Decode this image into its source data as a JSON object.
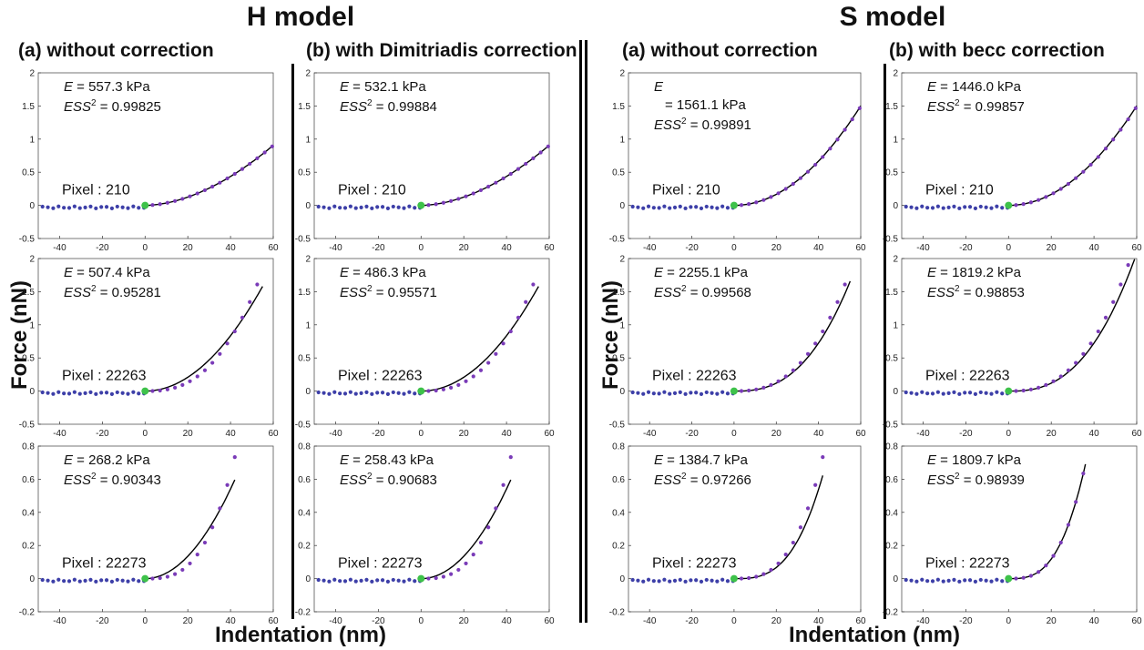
{
  "titles": {
    "h_model": "H model",
    "s_model": "S model",
    "h_a": "(a) without correction",
    "h_b": "(b) with Dimitriadis correction",
    "s_a": "(a) without correction",
    "s_b": "(b) with becc correction"
  },
  "axes": {
    "ylabel": "Force (nN)",
    "xlabel": "Indentation (nm)"
  },
  "colors": {
    "data_blue": "#3d3fa8",
    "data_purple": "#7a3bb8",
    "contact_green": "#3ec24a",
    "fit_line": "#000000"
  },
  "chart_data": [
    {
      "type": "scatter",
      "model": "H",
      "column": "a",
      "row": 1,
      "pixel_label": "Pixel : 210",
      "e_text": "= 557.3 kPa",
      "ess_text": "= 0.99825",
      "xlim": [
        -50,
        60
      ],
      "ylim": [
        -0.5,
        2
      ],
      "xticks": [
        -40,
        -20,
        0,
        20,
        40,
        60
      ],
      "yticks": [
        -0.5,
        0,
        0.5,
        1,
        1.5,
        2
      ],
      "fit": {
        "a": 0.000571,
        "p": 1.8
      },
      "data_exp": 1.8,
      "data_a": 0.000569,
      "xmax": 60
    },
    {
      "type": "scatter",
      "model": "H",
      "column": "b",
      "row": 1,
      "pixel_label": "Pixel : 210",
      "e_text": "= 532.1 kPa",
      "ess_text": "= 0.99884",
      "xlim": [
        -50,
        60
      ],
      "ylim": [
        -0.5,
        2
      ],
      "xticks": [
        -40,
        -20,
        0,
        20,
        40,
        60
      ],
      "yticks": [
        -0.5,
        0,
        0.5,
        1,
        1.5,
        2
      ],
      "fit": {
        "a": 0.000571,
        "p": 1.8
      },
      "data_exp": 1.8,
      "data_a": 0.000569,
      "xmax": 60
    },
    {
      "type": "scatter",
      "model": "S",
      "column": "a",
      "row": 1,
      "pixel_label": "Pixel : 210",
      "e_text": "= 1561.1 kPa",
      "e_wrap": true,
      "ess_text": "= 0.99891",
      "xlim": [
        -50,
        60
      ],
      "ylim": [
        -0.5,
        2
      ],
      "xticks": [
        -40,
        -20,
        0,
        20,
        40,
        60
      ],
      "yticks": [
        -0.5,
        0,
        0.5,
        1,
        1.5,
        2
      ],
      "fit": {
        "a": 0.000417,
        "p": 2.0
      },
      "data_exp": 2.0,
      "data_a": 0.000414,
      "xmax": 60
    },
    {
      "type": "scatter",
      "model": "S",
      "column": "b",
      "row": 1,
      "pixel_label": "Pixel : 210",
      "e_text": "= 1446.0 kPa",
      "ess_text": "= 0.99857",
      "xlim": [
        -50,
        60
      ],
      "ylim": [
        -0.5,
        2
      ],
      "xticks": [
        -40,
        -20,
        0,
        20,
        40,
        60
      ],
      "yticks": [
        -0.5,
        0,
        0.5,
        1,
        1.5,
        2
      ],
      "fit": {
        "a": 0.000417,
        "p": 2.0
      },
      "data_exp": 2.0,
      "data_a": 0.000414,
      "xmax": 60
    },
    {
      "type": "scatter",
      "model": "H",
      "column": "a",
      "row": 2,
      "pixel_label": "Pixel : 22263",
      "e_text": "= 507.4 kPa",
      "ess_text": "= 0.95281",
      "xlim": [
        -50,
        60
      ],
      "ylim": [
        -0.5,
        2
      ],
      "xticks": [
        -40,
        -20,
        0,
        20,
        40,
        60
      ],
      "yticks": [
        -0.5,
        0,
        0.5,
        1,
        1.5,
        2
      ],
      "fit": {
        "a": 0.000522,
        "p": 2.0
      },
      "data_exp": 2.6,
      "data_a": 5.42e-05,
      "xmax": 55
    },
    {
      "type": "scatter",
      "model": "H",
      "column": "b",
      "row": 2,
      "pixel_label": "Pixel : 22263",
      "e_text": "= 486.3 kPa",
      "ess_text": "= 0.95571",
      "xlim": [
        -50,
        60
      ],
      "ylim": [
        -0.5,
        2
      ],
      "xticks": [
        -40,
        -20,
        0,
        20,
        40,
        60
      ],
      "yticks": [
        -0.5,
        0,
        0.5,
        1,
        1.5,
        2
      ],
      "fit": {
        "a": 0.000522,
        "p": 2.0
      },
      "data_exp": 2.6,
      "data_a": 5.42e-05,
      "xmax": 55
    },
    {
      "type": "scatter",
      "model": "S",
      "column": "a",
      "row": 2,
      "pixel_label": "Pixel : 22263",
      "e_text": "= 2255.1 kPa",
      "ess_text": "= 0.99568",
      "xlim": [
        -50,
        60
      ],
      "ylim": [
        -0.5,
        2
      ],
      "xticks": [
        -40,
        -20,
        0,
        20,
        40,
        60
      ],
      "yticks": [
        -0.5,
        0,
        0.5,
        1,
        1.5,
        2
      ],
      "fit": {
        "a": 4.95e-05,
        "p": 2.6
      },
      "data_exp": 2.6,
      "data_a": 5.42e-05,
      "xmax": 55
    },
    {
      "type": "scatter",
      "model": "S",
      "column": "b",
      "row": 2,
      "pixel_label": "Pixel : 22263",
      "e_text": "= 1819.2 kPa",
      "ess_text": "= 0.98853",
      "xlim": [
        -50,
        60
      ],
      "ylim": [
        -0.5,
        2
      ],
      "xticks": [
        -40,
        -20,
        0,
        20,
        40,
        60
      ],
      "yticks": [
        -0.5,
        0,
        0.5,
        1,
        1.5,
        2
      ],
      "fit": {
        "a": 4.95e-05,
        "p": 2.6
      },
      "data_exp": 2.6,
      "data_a": 5.42e-05,
      "xmax": 60
    },
    {
      "type": "scatter",
      "model": "H",
      "column": "a",
      "row": 3,
      "pixel_label": "Pixel : 22273",
      "e_text": "= 268.2 kPa",
      "ess_text": "= 0.90343",
      "xlim": [
        -50,
        60
      ],
      "ylim": [
        -0.2,
        0.8
      ],
      "xticks": [
        -40,
        -20,
        0,
        20,
        40,
        60
      ],
      "yticks": [
        -0.2,
        0,
        0.2,
        0.4,
        0.6,
        0.8
      ],
      "fit": {
        "a": 0.000338,
        "p": 2.0
      },
      "data_exp": 3.0,
      "data_a": 9.9e-06,
      "xmax": 42
    },
    {
      "type": "scatter",
      "model": "H",
      "column": "b",
      "row": 3,
      "pixel_label": "Pixel : 22273",
      "e_text": "= 258.43 kPa",
      "ess_text": "= 0.90683",
      "xlim": [
        -50,
        60
      ],
      "ylim": [
        -0.2,
        0.8
      ],
      "xticks": [
        -40,
        -20,
        0,
        20,
        40,
        60
      ],
      "yticks": [
        -0.2,
        0,
        0.2,
        0.4,
        0.6,
        0.8
      ],
      "fit": {
        "a": 0.000338,
        "p": 2.0
      },
      "data_exp": 3.0,
      "data_a": 9.9e-06,
      "xmax": 42
    },
    {
      "type": "scatter",
      "model": "S",
      "column": "a",
      "row": 3,
      "pixel_label": "Pixel : 22273",
      "e_text": "= 1384.7 kPa",
      "ess_text": "= 0.97266",
      "xlim": [
        -50,
        60
      ],
      "ylim": [
        -0.2,
        0.8
      ],
      "xticks": [
        -40,
        -20,
        0,
        20,
        40,
        60
      ],
      "yticks": [
        -0.2,
        0,
        0.2,
        0.4,
        0.6,
        0.8
      ],
      "fit": {
        "a": 8.4e-06,
        "p": 3.0
      },
      "data_exp": 3.0,
      "data_a": 9.9e-06,
      "xmax": 42
    },
    {
      "type": "scatter",
      "model": "S",
      "column": "b",
      "row": 3,
      "pixel_label": "Pixel : 22273",
      "e_text": "= 1809.7 kPa",
      "ess_text": "= 0.98939",
      "xlim": [
        -50,
        60
      ],
      "ylim": [
        -0.2,
        0.8
      ],
      "xticks": [
        -40,
        -20,
        0,
        20,
        40,
        60
      ],
      "yticks": [
        -0.2,
        0,
        0.2,
        0.4,
        0.6,
        0.8
      ],
      "fit": {
        "a": 1.48e-05,
        "p": 3.0
      },
      "data_exp": 3.0,
      "data_a": 1.48e-05,
      "xmax": 36
    }
  ]
}
